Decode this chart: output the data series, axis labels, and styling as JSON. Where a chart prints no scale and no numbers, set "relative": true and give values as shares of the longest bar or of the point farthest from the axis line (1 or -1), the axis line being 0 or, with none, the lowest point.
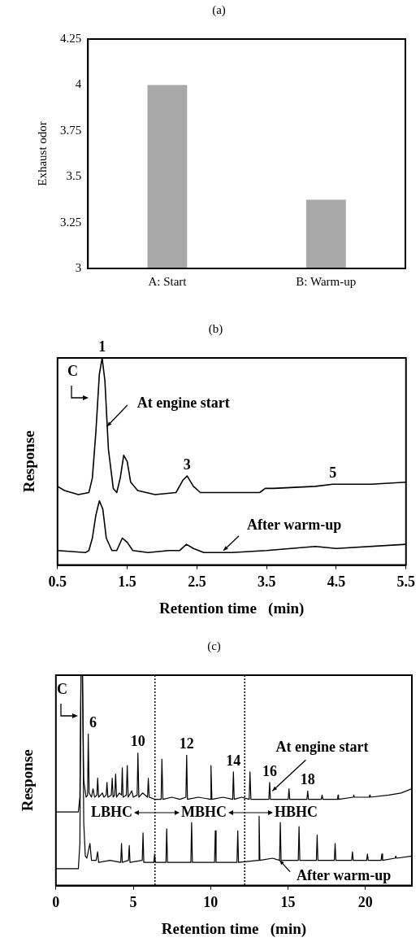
{
  "chart_data": [
    {
      "type": "bar",
      "title": "(a)",
      "ylabel": "Exhaust odor",
      "categories": [
        "A: Start",
        "B: Warm-up"
      ],
      "values": [
        4,
        3.375
      ],
      "color": "#a8a8a8",
      "ylim": [
        3,
        4.25
      ],
      "yticks": [
        3,
        3.25,
        3.5,
        3.75,
        4,
        4.25
      ]
    },
    {
      "type": "line",
      "title": "(b)",
      "xlabel": "Retention time   (min)",
      "ylabel": "Response",
      "relative": true,
      "xlim": [
        0.5,
        5.5
      ],
      "xticks": [
        0.5,
        1.5,
        2.5,
        3.5,
        4.5,
        5.5
      ],
      "series": [
        {
          "color": "#000000",
          "x": [
            0.5,
            0.6,
            0.8,
            0.95,
            1.0,
            1.05,
            1.1,
            1.14,
            1.18,
            1.23,
            1.3,
            1.35,
            1.4,
            1.45,
            1.5,
            1.55,
            1.65,
            1.9,
            2.2,
            2.3,
            2.36,
            2.45,
            2.55,
            3.0,
            3.4,
            3.48,
            3.6,
            4.2,
            4.45,
            4.7,
            5.0,
            5.5
          ],
          "values": [
            0.38,
            0.36,
            0.34,
            0.35,
            0.42,
            0.64,
            0.92,
            1.0,
            0.89,
            0.56,
            0.37,
            0.35,
            0.42,
            0.53,
            0.5,
            0.4,
            0.36,
            0.34,
            0.35,
            0.41,
            0.43,
            0.38,
            0.35,
            0.35,
            0.35,
            0.37,
            0.37,
            0.38,
            0.39,
            0.39,
            0.39,
            0.4
          ]
        },
        {
          "color": "#000000",
          "x": [
            0.5,
            0.9,
            0.95,
            1.0,
            1.05,
            1.1,
            1.15,
            1.2,
            1.28,
            1.35,
            1.43,
            1.5,
            1.58,
            1.8,
            2.1,
            2.25,
            2.35,
            2.45,
            2.6,
            3.0,
            3.5,
            4.2,
            4.5,
            5.5
          ],
          "values": [
            0.07,
            0.06,
            0.07,
            0.13,
            0.24,
            0.31,
            0.27,
            0.13,
            0.07,
            0.07,
            0.13,
            0.11,
            0.07,
            0.06,
            0.07,
            0.07,
            0.1,
            0.08,
            0.06,
            0.06,
            0.07,
            0.09,
            0.08,
            0.1
          ]
        }
      ],
      "annotations": [
        "C",
        {
          "text": "1",
          "x": 1.14,
          "y": 1.0
        },
        {
          "text": "3",
          "x": 2.36,
          "y": 0.43
        },
        {
          "text": "5",
          "x": 4.45,
          "y": 0.39
        },
        {
          "text": "At engine start",
          "x": 1.2,
          "y": 0.67
        },
        {
          "text": "After warm-up",
          "x": 2.87,
          "y": 0.07
        }
      ]
    },
    {
      "type": "line",
      "title": "(c)",
      "xlabel": "Retention time   (min)",
      "ylabel": "Response",
      "relative": true,
      "xlim": [
        0,
        23
      ],
      "xticks": [
        0,
        5,
        10,
        15,
        20
      ],
      "series": [
        {
          "color": "#000000",
          "x": [
            0,
            1.45,
            1.55,
            1.62,
            1.72,
            1.8,
            1.95,
            2.05,
            2.09,
            2.15,
            2.3,
            2.4,
            2.5,
            2.65,
            2.7,
            2.76,
            3.0,
            3.1,
            3.25,
            3.3,
            3.36,
            3.58,
            3.64,
            3.7,
            3.8,
            3.86,
            3.92,
            4.1,
            4.24,
            4.29,
            4.34,
            4.55,
            4.61,
            4.67,
            4.9,
            5.0,
            5.25,
            5.3,
            5.36,
            5.6,
            5.92,
            5.97,
            6.03,
            6.4,
            6.8,
            6.85,
            6.91,
            7.5,
            8.0,
            8.4,
            8.45,
            8.5,
            9.2,
            10.0,
            10.02,
            10.08,
            10.8,
            11.42,
            11.47,
            11.52,
            12.0,
            12.49,
            12.54,
            12.6,
            13.2,
            13.76,
            13.81,
            13.86,
            14.5,
            15.01,
            15.06,
            15.11,
            16.22,
            16.27,
            16.32,
            17.15,
            17.2,
            17.25,
            18.2,
            18.23,
            18.26,
            19.22,
            19.25,
            19.28,
            20.25,
            20.28,
            20.31,
            21.5,
            22.3,
            23
          ],
          "values": [
            0.35,
            0.35,
            0.42,
            1.0,
            1.0,
            0.5,
            0.42,
            0.43,
            0.72,
            0.44,
            0.42,
            0.46,
            0.42,
            0.43,
            0.51,
            0.42,
            0.44,
            0.42,
            0.43,
            0.49,
            0.42,
            0.43,
            0.51,
            0.42,
            0.43,
            0.53,
            0.42,
            0.44,
            0.43,
            0.56,
            0.42,
            0.43,
            0.57,
            0.42,
            0.45,
            0.42,
            0.43,
            0.63,
            0.42,
            0.44,
            0.42,
            0.51,
            0.42,
            0.41,
            0.41,
            0.6,
            0.41,
            0.42,
            0.41,
            0.42,
            0.62,
            0.41,
            0.42,
            0.41,
            0.57,
            0.41,
            0.42,
            0.41,
            0.54,
            0.41,
            0.42,
            0.41,
            0.54,
            0.41,
            0.41,
            0.41,
            0.49,
            0.41,
            0.41,
            0.41,
            0.46,
            0.41,
            0.41,
            0.45,
            0.41,
            0.41,
            0.43,
            0.41,
            0.41,
            0.43,
            0.41,
            0.42,
            0.43,
            0.42,
            0.42,
            0.43,
            0.42,
            0.43,
            0.44,
            0.46
          ]
        },
        {
          "color": "#000000",
          "x": [
            0,
            1.45,
            1.55,
            1.62,
            1.72,
            1.8,
            1.9,
            2.0,
            2.2,
            2.3,
            2.6,
            2.7,
            2.76,
            3.5,
            4.19,
            4.24,
            4.29,
            4.69,
            4.74,
            4.79,
            5.58,
            5.63,
            5.68,
            6.33,
            6.38,
            6.43,
            7.11,
            7.16,
            7.21,
            8.72,
            8.77,
            8.82,
            10.25,
            10.3,
            10.35,
            11.7,
            11.75,
            11.8,
            13.08,
            13.13,
            13.18,
            14.0,
            14.45,
            14.5,
            14.55,
            15.66,
            15.71,
            15.76,
            16.83,
            16.88,
            16.93,
            17.99,
            18.04,
            18.09,
            19.11,
            19.16,
            19.21,
            20.08,
            20.13,
            20.18,
            21.01,
            21.06,
            21.11,
            21.91,
            21.96,
            22.01,
            23
          ],
          "values": [
            0.08,
            0.08,
            0.2,
            1.0,
            1.0,
            0.3,
            0.14,
            0.13,
            0.2,
            0.12,
            0.12,
            0.16,
            0.11,
            0.12,
            0.11,
            0.2,
            0.11,
            0.12,
            0.19,
            0.11,
            0.12,
            0.25,
            0.11,
            0.11,
            0.15,
            0.11,
            0.11,
            0.27,
            0.11,
            0.11,
            0.3,
            0.11,
            0.11,
            0.26,
            0.11,
            0.11,
            0.26,
            0.11,
            0.12,
            0.33,
            0.12,
            0.13,
            0.12,
            0.3,
            0.12,
            0.12,
            0.28,
            0.12,
            0.12,
            0.24,
            0.12,
            0.12,
            0.2,
            0.12,
            0.12,
            0.16,
            0.12,
            0.12,
            0.15,
            0.12,
            0.12,
            0.15,
            0.12,
            0.13,
            0.14,
            0.13,
            0.14
          ]
        }
      ],
      "ref_lines": [
        {
          "axis": "x",
          "value": 6.4,
          "line_style": "dotted"
        },
        {
          "axis": "x",
          "value": 12.2,
          "line_style": "dotted"
        }
      ],
      "annotations": [
        "C",
        {
          "text": "6",
          "x": 2.09,
          "y": 0.72
        },
        {
          "text": "10",
          "x": 5.3,
          "y": 0.63
        },
        {
          "text": "12",
          "x": 8.45,
          "y": 0.62
        },
        {
          "text": "14",
          "x": 11.47,
          "y": 0.54
        },
        {
          "text": "16",
          "x": 13.81,
          "y": 0.49
        },
        {
          "text": "18",
          "x": 16.27,
          "y": 0.45
        },
        {
          "text": "At engine start",
          "x": 13.94,
          "y": 0.45
        },
        {
          "text": "After warm-up",
          "x": 14.4,
          "y": 0.12
        },
        "LBHC",
        "MBHC",
        "HBHC"
      ]
    }
  ]
}
